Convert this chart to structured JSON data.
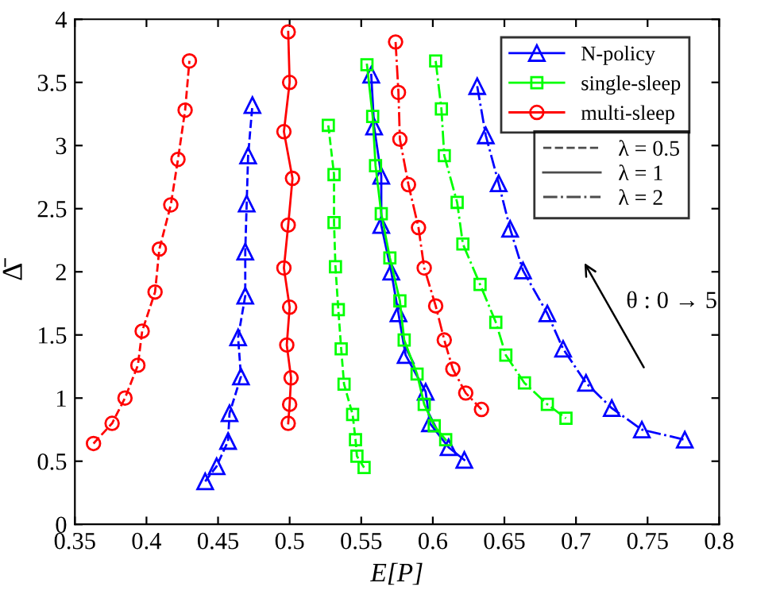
{
  "chart_data": {
    "type": "line",
    "xlabel": "E[P]",
    "ylabel": "Δ̄",
    "xlim": [
      0.35,
      0.8
    ],
    "xticks": [
      0.35,
      0.4,
      0.45,
      0.5,
      0.55,
      0.6,
      0.65,
      0.7,
      0.75,
      0.8
    ],
    "ylim": [
      0,
      4
    ],
    "yticks": [
      0,
      0.5,
      1,
      1.5,
      2,
      2.5,
      3,
      3.5,
      4
    ],
    "grid": false,
    "legend": "top right",
    "annotations": [
      "λ = 0.5",
      "λ = 1",
      "λ = 2",
      "θ : 0 → 5"
    ],
    "series": [
      {
        "color": "#0000ff",
        "marker": "triangle",
        "line_style": "dashed",
        "x": [
          0.441,
          0.449,
          0.457,
          0.458,
          0.466,
          0.464,
          0.469,
          0.469,
          0.47,
          0.471,
          0.474
        ],
        "values": [
          0.34,
          0.46,
          0.66,
          0.88,
          1.17,
          1.48,
          1.81,
          2.16,
          2.54,
          2.92,
          3.32
        ]
      },
      {
        "color": "#00ff00",
        "marker": "square",
        "line_style": "dashed",
        "x": [
          0.527,
          0.531,
          0.531,
          0.532,
          0.534,
          0.536,
          0.538,
          0.544,
          0.546,
          0.547,
          0.552
        ],
        "values": [
          3.16,
          2.77,
          2.39,
          2.04,
          1.7,
          1.39,
          1.11,
          0.87,
          0.67,
          0.54,
          0.45
        ]
      },
      {
        "color": "#ff0000",
        "marker": "circle",
        "line_style": "dashed",
        "x": [
          0.363,
          0.376,
          0.385,
          0.394,
          0.397,
          0.406,
          0.409,
          0.417,
          0.422,
          0.427,
          0.43
        ],
        "values": [
          0.64,
          0.8,
          1.0,
          1.26,
          1.53,
          1.84,
          2.18,
          2.53,
          2.89,
          3.28,
          3.67
        ]
      },
      {
        "name": "N-policy",
        "color": "#0000ff",
        "marker": "triangle",
        "line_style": "solid",
        "x": [
          0.557,
          0.559,
          0.564,
          0.564,
          0.571,
          0.576,
          0.581,
          0.595,
          0.598,
          0.611,
          0.622
        ],
        "values": [
          3.56,
          3.15,
          2.76,
          2.37,
          2.0,
          1.67,
          1.34,
          1.05,
          0.8,
          0.61,
          0.51
        ]
      },
      {
        "name": "single-sleep",
        "color": "#00ff00",
        "marker": "square",
        "line_style": "solid",
        "x": [
          0.554,
          0.558,
          0.56,
          0.564,
          0.57,
          0.577,
          0.58,
          0.589,
          0.594,
          0.601,
          0.609
        ],
        "values": [
          3.64,
          3.23,
          2.84,
          2.46,
          2.11,
          1.77,
          1.46,
          1.19,
          0.95,
          0.78,
          0.67
        ]
      },
      {
        "name": "multi-sleep",
        "color": "#ff0000",
        "marker": "circle",
        "line_style": "solid",
        "x": [
          0.499,
          0.5,
          0.496,
          0.502,
          0.499,
          0.496,
          0.5,
          0.498,
          0.501,
          0.5,
          0.499
        ],
        "values": [
          3.9,
          3.5,
          3.11,
          2.74,
          2.37,
          2.03,
          1.72,
          1.42,
          1.16,
          0.95,
          0.8
        ]
      },
      {
        "color": "#0000ff",
        "marker": "triangle",
        "line_style": "dashdot",
        "x": [
          0.631,
          0.637,
          0.646,
          0.654,
          0.663,
          0.68,
          0.691,
          0.707,
          0.725,
          0.746,
          0.776
        ],
        "values": [
          3.47,
          3.08,
          2.7,
          2.34,
          2.01,
          1.67,
          1.39,
          1.12,
          0.92,
          0.75,
          0.67
        ]
      },
      {
        "color": "#00ff00",
        "marker": "square",
        "line_style": "dashdot",
        "x": [
          0.602,
          0.606,
          0.608,
          0.617,
          0.621,
          0.633,
          0.644,
          0.651,
          0.664,
          0.68,
          0.693
        ],
        "values": [
          3.67,
          3.29,
          2.92,
          2.55,
          2.22,
          1.9,
          1.6,
          1.34,
          1.12,
          0.95,
          0.84
        ]
      },
      {
        "color": "#ff0000",
        "marker": "circle",
        "line_style": "dashdot",
        "x": [
          0.574,
          0.576,
          0.577,
          0.583,
          0.59,
          0.594,
          0.602,
          0.608,
          0.614,
          0.623,
          0.634
        ],
        "values": [
          3.82,
          3.42,
          3.05,
          2.69,
          2.35,
          2.03,
          1.73,
          1.46,
          1.23,
          1.04,
          0.91
        ]
      }
    ]
  }
}
